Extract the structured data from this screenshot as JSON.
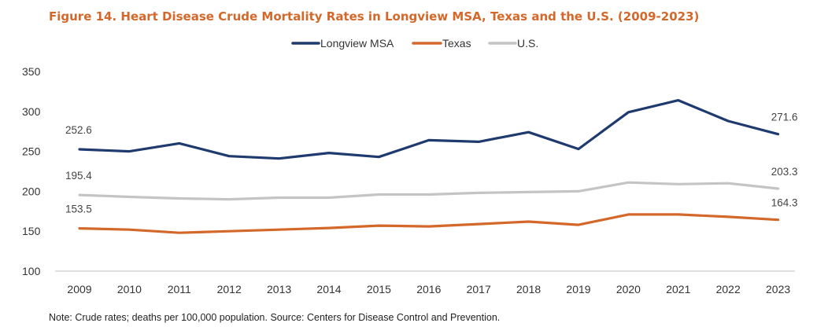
{
  "chart_data": {
    "type": "line",
    "title": "Figure 14. Heart Disease Crude Mortality Rates in Longview MSA, Texas and the U.S. (2009-2023)",
    "xlabel": "",
    "ylabel": "",
    "categories": [
      "2009",
      "2010",
      "2011",
      "2012",
      "2013",
      "2014",
      "2015",
      "2016",
      "2017",
      "2018",
      "2019",
      "2020",
      "2021",
      "2022",
      "2023"
    ],
    "ylim": [
      100,
      350
    ],
    "yticks": [
      100,
      150,
      200,
      250,
      300,
      350
    ],
    "grid": false,
    "legend_position": "top-center",
    "series": [
      {
        "name": "Longview MSA",
        "color": "#1f3a6e",
        "values": [
          252.6,
          250,
          260,
          244,
          241,
          248,
          243,
          264,
          262,
          274,
          253,
          299,
          314,
          288,
          271.6
        ]
      },
      {
        "name": "Texas",
        "color": "#d4682a",
        "values": [
          153.5,
          152,
          148,
          150,
          152,
          154,
          157,
          156,
          159,
          162,
          158,
          171,
          171,
          168,
          164.3
        ]
      },
      {
        "name": "U.S.",
        "color": "#c4c4c4",
        "values": [
          195.4,
          193,
          191,
          190,
          192,
          192,
          196,
          196,
          198,
          199,
          200,
          211,
          209,
          210,
          203.3
        ]
      }
    ],
    "data_labels": [
      {
        "series": 0,
        "index": 0,
        "text": "252.6",
        "side": "above"
      },
      {
        "series": 0,
        "index": 14,
        "text": "271.6",
        "side": "above"
      },
      {
        "series": 2,
        "index": 0,
        "text": "195.4",
        "side": "above"
      },
      {
        "series": 2,
        "index": 14,
        "text": "203.3",
        "side": "above"
      },
      {
        "series": 1,
        "index": 0,
        "text": "153.5",
        "side": "above"
      },
      {
        "series": 1,
        "index": 14,
        "text": "164.3",
        "side": "above"
      }
    ]
  },
  "note": "Note: Crude rates; deaths per 100,000 population. Source: Centers for Disease Control and Prevention."
}
